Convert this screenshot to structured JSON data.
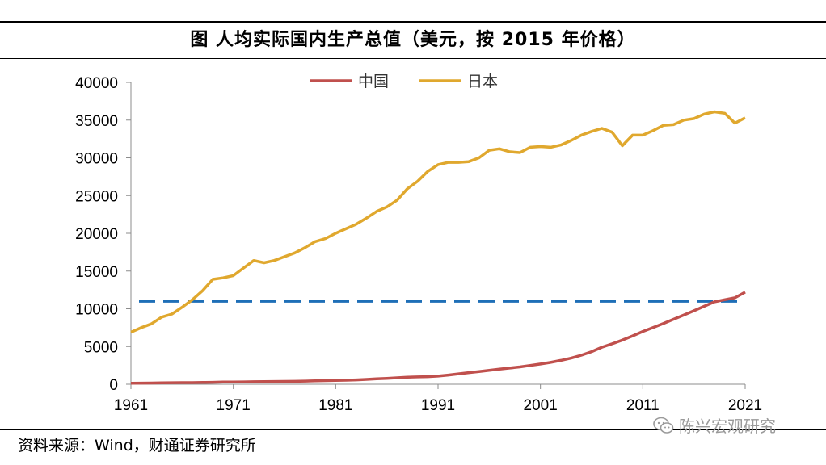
{
  "header": {
    "title": "图 人均实际国内生产总值（美元，按 2015 年价格）"
  },
  "footer": {
    "source": "资料来源：Wind，财通证券研究所",
    "watermark": "陈兴宏观研究"
  },
  "chart_data": {
    "type": "line",
    "title": "图 人均实际国内生产总值（美元，按 2015 年价格）",
    "xlabel": "",
    "ylabel": "",
    "xlim": [
      1961,
      2021
    ],
    "ylim": [
      0,
      40000
    ],
    "x_ticks": [
      1961,
      1971,
      1981,
      1991,
      2001,
      2011,
      2021
    ],
    "y_ticks": [
      0,
      5000,
      10000,
      15000,
      20000,
      25000,
      30000,
      35000,
      40000
    ],
    "legend_position": "top-center",
    "grid": false,
    "x": [
      1961,
      1962,
      1963,
      1964,
      1965,
      1966,
      1967,
      1968,
      1969,
      1970,
      1971,
      1972,
      1973,
      1974,
      1975,
      1976,
      1977,
      1978,
      1979,
      1980,
      1981,
      1982,
      1983,
      1984,
      1985,
      1986,
      1987,
      1988,
      1989,
      1990,
      1991,
      1992,
      1993,
      1994,
      1995,
      1996,
      1997,
      1998,
      1999,
      2000,
      2001,
      2002,
      2003,
      2004,
      2005,
      2006,
      2007,
      2008,
      2009,
      2010,
      2011,
      2012,
      2013,
      2014,
      2015,
      2016,
      2017,
      2018,
      2019,
      2020,
      2021
    ],
    "series": [
      {
        "name": "中国",
        "color": "#C0504D",
        "values": [
          140,
          150,
          160,
          180,
          200,
          210,
          210,
          230,
          260,
          290,
          300,
          310,
          330,
          340,
          360,
          370,
          390,
          420,
          450,
          480,
          500,
          530,
          580,
          640,
          720,
          780,
          860,
          940,
          970,
          1000,
          1080,
          1220,
          1380,
          1540,
          1690,
          1850,
          2010,
          2150,
          2300,
          2490,
          2680,
          2900,
          3170,
          3470,
          3850,
          4320,
          4910,
          5360,
          5850,
          6410,
          6990,
          7510,
          8050,
          8610,
          9170,
          9740,
          10330,
          10920,
          11200,
          11450,
          12200
        ]
      },
      {
        "name": "日本",
        "color": "#E0A82E",
        "values": [
          6900,
          7500,
          8000,
          8900,
          9300,
          10200,
          11200,
          12400,
          13900,
          14100,
          14400,
          15400,
          16400,
          16100,
          16400,
          16900,
          17400,
          18100,
          18900,
          19300,
          20000,
          20600,
          21200,
          22000,
          22900,
          23500,
          24400,
          25900,
          26900,
          28200,
          29100,
          29400,
          29400,
          29500,
          30000,
          31000,
          31200,
          30800,
          30700,
          31400,
          31500,
          31400,
          31700,
          32300,
          33000,
          33500,
          33900,
          33400,
          31600,
          33000,
          33000,
          33600,
          34300,
          34400,
          35000,
          35200,
          35800,
          36100,
          35900,
          34600,
          35300
        ]
      }
    ],
    "reference_lines": [
      {
        "orientation": "horizontal",
        "value": 11000,
        "style": "dashed",
        "color": "#1F6FB7"
      }
    ]
  }
}
